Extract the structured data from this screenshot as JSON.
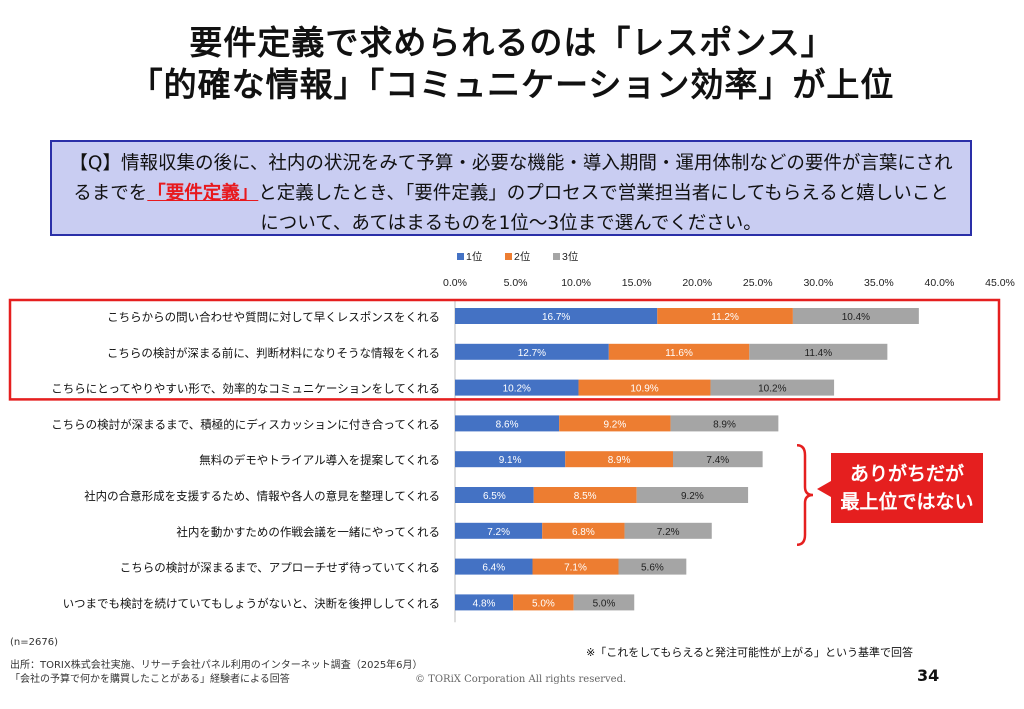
{
  "title": {
    "line1": "要件定義で求められるのは「レスポンス」",
    "line2": "「的確な情報」「コミュニケーション効率」が上位"
  },
  "question": {
    "part1": "【Q】情報収集の後に、社内の状況をみて予算・必要な機能・導入期間・運用体制などの要件が言葉にされるまでを",
    "highlight": "「要件定義」",
    "part2": "と定義したとき、「要件定義」のプロセスで営業担当者にしてもらえると嬉しいことについて、あてはまるものを1位～3位まで選んでください。"
  },
  "chart_data": {
    "type": "bar",
    "orientation": "horizontal",
    "stacked": true,
    "categories": [
      "こちらからの問い合わせや質問に対して早くレスポンスをくれる",
      "こちらの検討が深まる前に、判断材料になりそうな情報をくれる",
      "こちらにとってやりやすい形で、効率的なコミュニケーションをしてくれる",
      "こちらの検討が深まるまで、積極的にディスカッションに付き合ってくれる",
      "無料のデモやトライアル導入を提案してくれる",
      "社内の合意形成を支援するため、情報や各人の意見を整理してくれる",
      "社内を動かすための作戦会議を一緒にやってくれる",
      "こちらの検討が深まるまで、アプローチせず待っていてくれる",
      "いつまでも検討を続けていてもしょうがないと、決断を後押ししてくれる"
    ],
    "series": [
      {
        "name": "1位",
        "color": "#4472c4",
        "values": [
          16.7,
          12.7,
          10.2,
          8.6,
          9.1,
          6.5,
          7.2,
          6.4,
          4.8
        ]
      },
      {
        "name": "2位",
        "color": "#ed7d31",
        "values": [
          11.2,
          11.6,
          10.9,
          9.2,
          8.9,
          8.5,
          6.8,
          7.1,
          5.0
        ]
      },
      {
        "name": "3位",
        "color": "#a5a5a5",
        "values": [
          10.4,
          11.4,
          10.2,
          8.9,
          7.4,
          9.2,
          7.2,
          5.6,
          5.0
        ]
      }
    ],
    "value_labels": [
      [
        "16.7%",
        "11.2%",
        "10.4%"
      ],
      [
        "12.7%",
        "11.6%",
        "11.4%"
      ],
      [
        "10.2%",
        "10.9%",
        "10.2%"
      ],
      [
        "8.6%",
        "9.2%",
        "8.9%"
      ],
      [
        "9.1%",
        "8.9%",
        "7.4%"
      ],
      [
        "6.5%",
        "8.5%",
        "9.2%"
      ],
      [
        "7.2%",
        "6.8%",
        "7.2%"
      ],
      [
        "6.4%",
        "7.1%",
        "5.6%"
      ],
      [
        "4.8%",
        "5.0%",
        "5.0%"
      ]
    ],
    "ticks": [
      0,
      5,
      10,
      15,
      20,
      25,
      30,
      35,
      40,
      45
    ],
    "tick_labels": [
      "0.0%",
      "5.0%",
      "10.0%",
      "15.0%",
      "20.0%",
      "25.0%",
      "30.0%",
      "35.0%",
      "40.0%",
      "45.0%"
    ],
    "xlim": [
      0,
      45
    ],
    "legend_position": "top",
    "grid": false,
    "highlight_rows": [
      0,
      1,
      2
    ],
    "bracket_rows": [
      4,
      5,
      6
    ]
  },
  "callout": {
    "line1": "ありがちだが",
    "line2": "最上位ではない",
    "color": "#e51f1f"
  },
  "footer": {
    "n": "(n=2676)",
    "source1": "出所：TORIX株式会社実施、リサーチ会社パネル利用のインターネット調査（2025年6月）",
    "source2": "「会社の予算で何かを購買したことがある」経験者による回答",
    "note": "※「これをしてもらえると発注可能性が上がる」という基準で回答",
    "copyright": "© TORiX Corporation All rights reserved.",
    "page": "34"
  }
}
